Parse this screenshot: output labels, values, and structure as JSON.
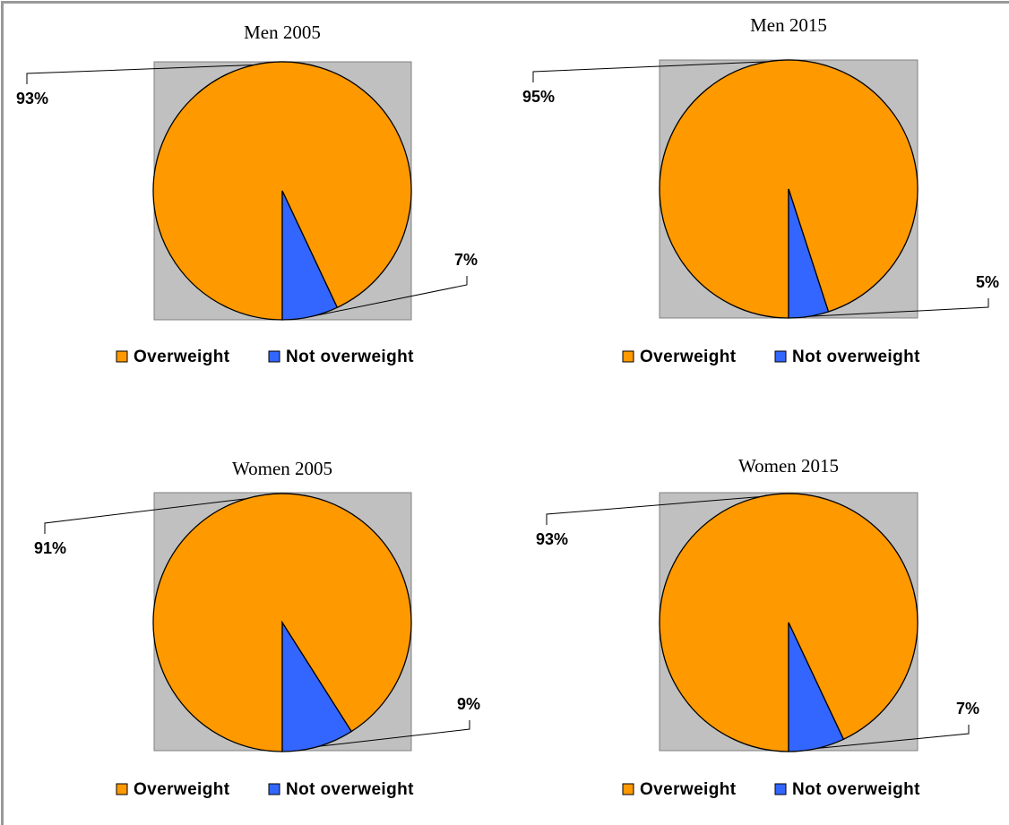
{
  "colors": {
    "background": "#ffffff",
    "plot_area": "#c0c0c0",
    "overweight": "#ff9900",
    "not_overweight": "#3366ff",
    "outline": "#000000",
    "frame": "#999999"
  },
  "chart_data": [
    {
      "type": "pie",
      "title": "Men 2005",
      "slices": [
        {
          "name": "Overweight",
          "value": 93,
          "label": "93%"
        },
        {
          "name": "Not overweight",
          "value": 7,
          "label": "7%"
        }
      ],
      "legend": {
        "placement": "bottom",
        "entries": [
          "Overweight",
          "Not overweight"
        ]
      }
    },
    {
      "type": "pie",
      "title": "Men 2015",
      "slices": [
        {
          "name": "Overweight",
          "value": 95,
          "label": "95%"
        },
        {
          "name": "Not overweight",
          "value": 5,
          "label": "5%"
        }
      ],
      "legend": {
        "placement": "bottom",
        "entries": [
          "Overweight",
          "Not overweight"
        ]
      }
    },
    {
      "type": "pie",
      "title": "Women 2005",
      "slices": [
        {
          "name": "Overweight",
          "value": 91,
          "label": "91%"
        },
        {
          "name": "Not overweight",
          "value": 9,
          "label": "9%"
        }
      ],
      "legend": {
        "placement": "bottom",
        "entries": [
          "Overweight",
          "Not overweight"
        ]
      }
    },
    {
      "type": "pie",
      "title": "Women 2015",
      "slices": [
        {
          "name": "Overweight",
          "value": 93,
          "label": "93%"
        },
        {
          "name": "Not overweight",
          "value": 7,
          "label": "7%"
        }
      ],
      "legend": {
        "placement": "bottom",
        "entries": [
          "Overweight",
          "Not overweight"
        ]
      }
    }
  ]
}
